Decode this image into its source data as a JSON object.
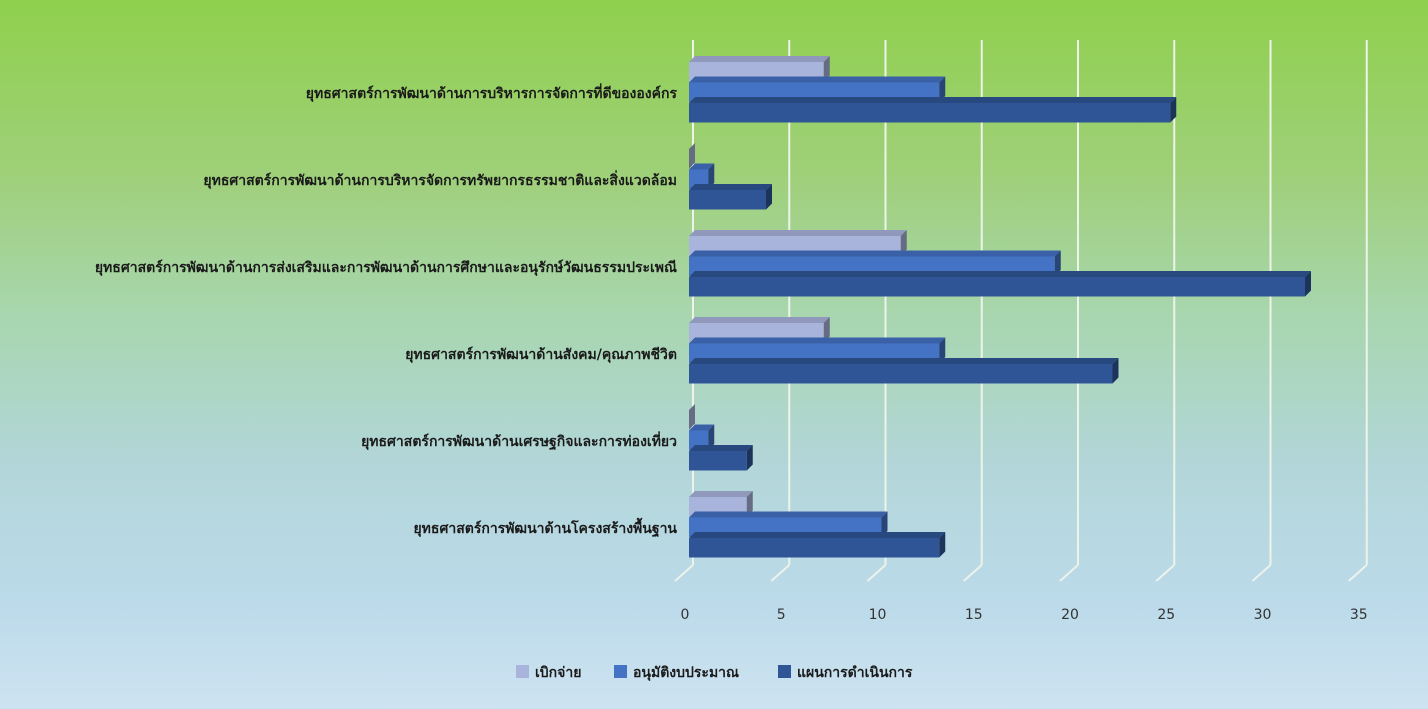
{
  "chart_data": {
    "type": "bar",
    "orientation": "horizontal",
    "style": "3d-clustered",
    "categories": [
      "ยุทธศาสตร์การพัฒนาด้านการบริหารการจัดการที่ดีขององค์กร",
      "ยุทธศาสตร์การพัฒนาด้านการบริหารจัดการทรัพยากรธรรมชาติและสิ่งแวดล้อม",
      "ยุทธศาสตร์การพัฒนาด้านการส่งเสริมและการพัฒนาด้านการศึกษาและอนุรักษ์วัฒนธรรมประเพณี",
      "ยุทธศาสตร์การพัฒนาด้านสังคม/คุณภาพชีวิต",
      "ยุทธศาสตร์การพัฒนาด้านเศรษฐกิจและการท่องเที่ยว",
      "ยุทธศาสตร์การพัฒนาด้านโครงสร้างพื้นฐาน"
    ],
    "series": [
      {
        "name": "เบิกจ่าย",
        "color": "#a9b4dc",
        "values": [
          7,
          0,
          11,
          7,
          0,
          3
        ]
      },
      {
        "name": "อนุมัติงบประมาณ",
        "color": "#4472c4",
        "values": [
          13,
          1,
          19,
          13,
          1,
          10
        ]
      },
      {
        "name": "แผนการดำเนินการ",
        "color": "#2f5597",
        "values": [
          25,
          4,
          32,
          22,
          3,
          13
        ]
      }
    ],
    "x_ticks": [
      "0",
      "5",
      "10",
      "15",
      "20",
      "25",
      "30",
      "35"
    ],
    "xlim": [
      0,
      35
    ],
    "grid": true,
    "legend_position": "bottom"
  }
}
